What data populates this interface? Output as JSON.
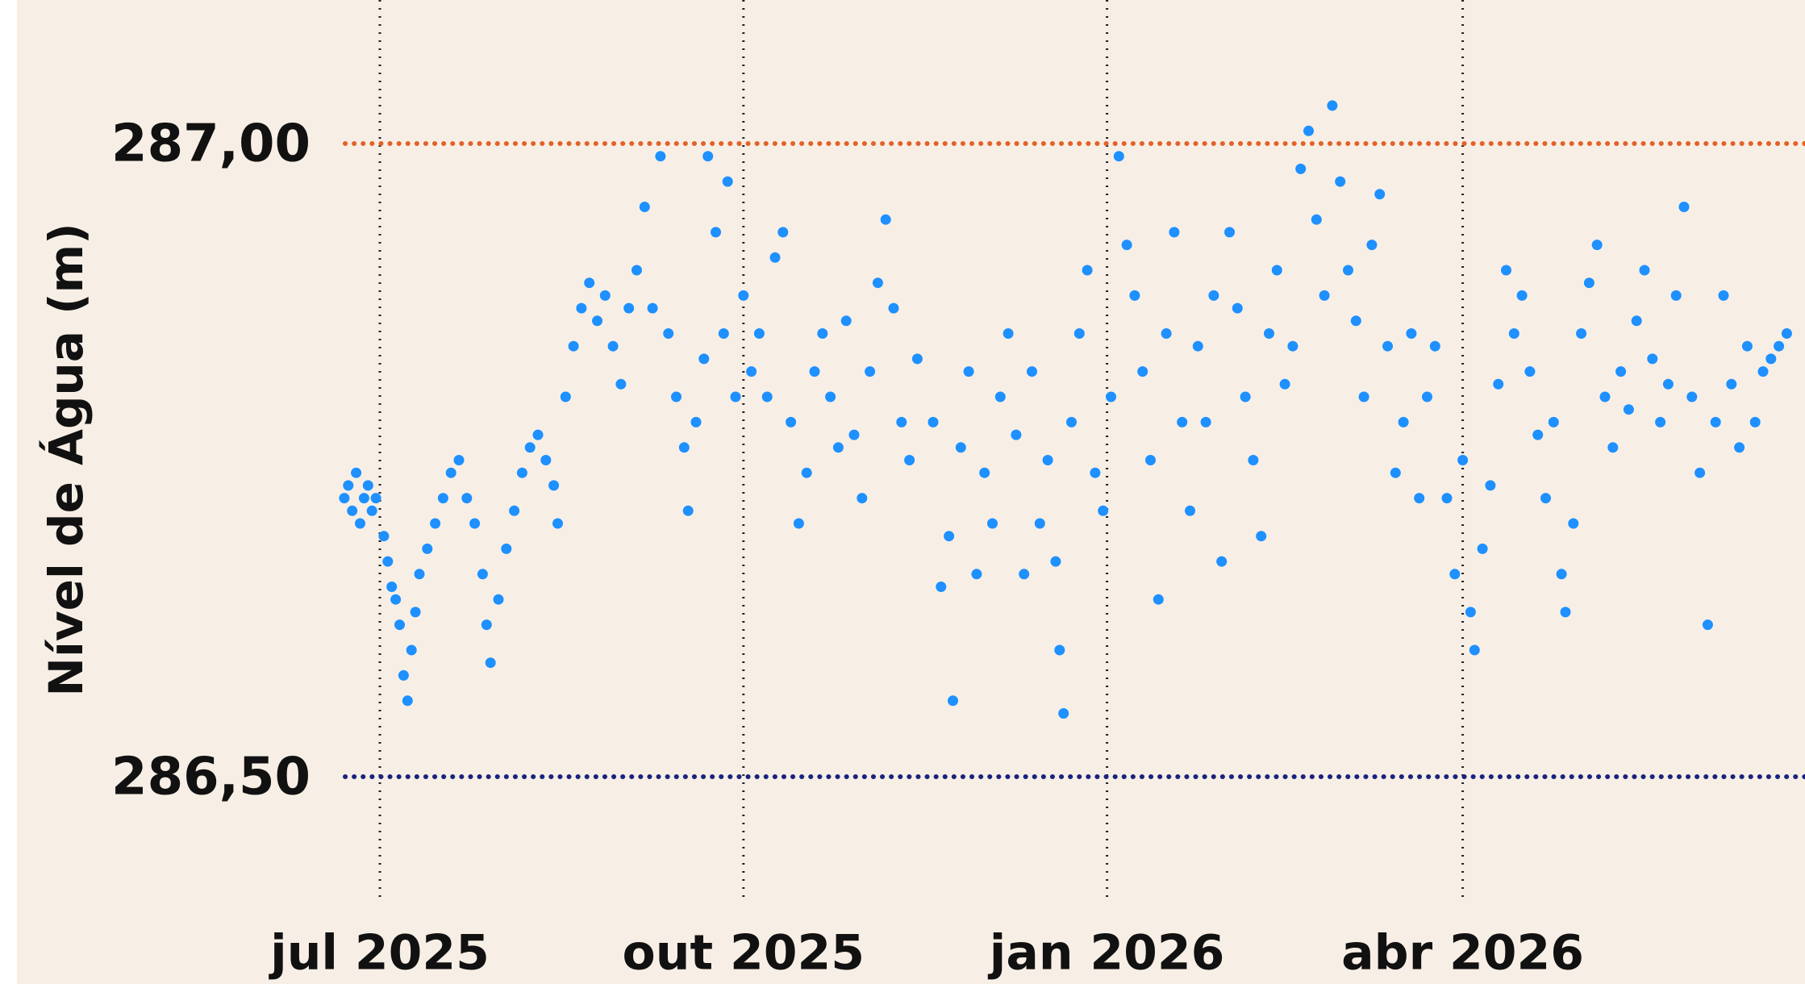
{
  "chart_data": {
    "type": "scatter",
    "y_label": "Nível de Água (m)",
    "xlim": [
      -10,
      360
    ],
    "xticks": [
      {
        "value": 0,
        "label": "jul 2025"
      },
      {
        "value": 92,
        "label": "out 2025"
      },
      {
        "value": 184,
        "label": "jan 2026"
      },
      {
        "value": 274,
        "label": "abr 2026"
      }
    ],
    "ylim": [
      286.4,
      287.1
    ],
    "yticks": [
      {
        "value": 286.5,
        "label": "286,50"
      },
      {
        "value": 287,
        "label": "287,00"
      }
    ],
    "reference_lines": [
      {
        "value": 287,
        "color": "#e2622a"
      },
      {
        "value": 286.5,
        "color": "#1a237e"
      }
    ],
    "grid_x": true,
    "series": [
      {
        "color": "#1e90ff",
        "x": [
          -9,
          -8,
          -7,
          -6,
          -5,
          -4,
          -3,
          -2,
          -1,
          1,
          2,
          3,
          4,
          5,
          6,
          7,
          8,
          9,
          10,
          12,
          14,
          16,
          18,
          20,
          22,
          24,
          26,
          27,
          28,
          30,
          32,
          34,
          36,
          38,
          40,
          42,
          44,
          45,
          47,
          49,
          51,
          53,
          55,
          57,
          59,
          61,
          63,
          65,
          67,
          69,
          71,
          73,
          75,
          77,
          78,
          80,
          82,
          83,
          85,
          87,
          88,
          90,
          92,
          94,
          96,
          98,
          100,
          102,
          104,
          106,
          108,
          110,
          112,
          114,
          116,
          118,
          120,
          122,
          124,
          126,
          128,
          130,
          132,
          134,
          136,
          140,
          142,
          144,
          145,
          147,
          149,
          151,
          153,
          155,
          157,
          159,
          161,
          163,
          165,
          167,
          169,
          171,
          172,
          173,
          175,
          177,
          179,
          181,
          183,
          185,
          187,
          189,
          191,
          193,
          195,
          197,
          199,
          201,
          203,
          205,
          207,
          209,
          211,
          213,
          215,
          217,
          219,
          221,
          223,
          225,
          227,
          229,
          231,
          233,
          235,
          237,
          239,
          241,
          243,
          245,
          247,
          249,
          251,
          253,
          255,
          257,
          259,
          261,
          263,
          265,
          267,
          270,
          272,
          274,
          276,
          277,
          279,
          281,
          283,
          285,
          287,
          289,
          291,
          293,
          295,
          297,
          299,
          300,
          302,
          304,
          306,
          308,
          310,
          312,
          314,
          316,
          318,
          320,
          322,
          324,
          326,
          328,
          330,
          332,
          334,
          336,
          338,
          340,
          342,
          344,
          346,
          348,
          350,
          352,
          354,
          356
        ],
        "values": [
          286.72,
          286.73,
          286.71,
          286.74,
          286.7,
          286.72,
          286.73,
          286.71,
          286.72,
          286.69,
          286.67,
          286.65,
          286.64,
          286.62,
          286.58,
          286.56,
          286.6,
          286.63,
          286.66,
          286.68,
          286.7,
          286.72,
          286.74,
          286.75,
          286.72,
          286.7,
          286.66,
          286.62,
          286.59,
          286.64,
          286.68,
          286.71,
          286.74,
          286.76,
          286.77,
          286.75,
          286.73,
          286.7,
          286.8,
          286.84,
          286.87,
          286.89,
          286.86,
          286.88,
          286.84,
          286.81,
          286.87,
          286.9,
          286.95,
          286.87,
          286.99,
          286.85,
          286.8,
          286.76,
          286.71,
          286.78,
          286.83,
          286.99,
          286.93,
          286.85,
          286.97,
          286.8,
          286.88,
          286.82,
          286.85,
          286.8,
          286.91,
          286.93,
          286.78,
          286.7,
          286.74,
          286.82,
          286.85,
          286.8,
          286.76,
          286.86,
          286.77,
          286.72,
          286.82,
          286.89,
          286.94,
          286.87,
          286.78,
          286.75,
          286.83,
          286.78,
          286.65,
          286.69,
          286.56,
          286.76,
          286.82,
          286.66,
          286.74,
          286.7,
          286.8,
          286.85,
          286.77,
          286.66,
          286.82,
          286.7,
          286.75,
          286.67,
          286.6,
          286.55,
          286.78,
          286.85,
          286.9,
          286.74,
          286.71,
          286.8,
          286.99,
          286.92,
          286.88,
          286.82,
          286.75,
          286.64,
          286.85,
          286.93,
          286.78,
          286.71,
          286.84,
          286.78,
          286.88,
          286.67,
          286.93,
          286.87,
          286.8,
          286.75,
          286.69,
          286.85,
          286.9,
          286.81,
          286.84,
          286.98,
          287.01,
          286.94,
          286.88,
          287.03,
          286.97,
          286.9,
          286.86,
          286.8,
          286.92,
          286.96,
          286.84,
          286.74,
          286.78,
          286.85,
          286.72,
          286.8,
          286.84,
          286.72,
          286.66,
          286.75,
          286.63,
          286.6,
          286.68,
          286.73,
          286.81,
          286.9,
          286.85,
          286.88,
          286.82,
          286.77,
          286.72,
          286.78,
          286.66,
          286.63,
          286.7,
          286.85,
          286.89,
          286.92,
          286.8,
          286.76,
          286.82,
          286.79,
          286.86,
          286.9,
          286.83,
          286.78,
          286.81,
          286.88,
          286.95,
          286.8,
          286.74,
          286.62,
          286.78,
          286.88,
          286.81,
          286.76,
          286.84,
          286.78,
          286.82,
          286.83,
          286.84,
          286.85
        ]
      }
    ]
  }
}
